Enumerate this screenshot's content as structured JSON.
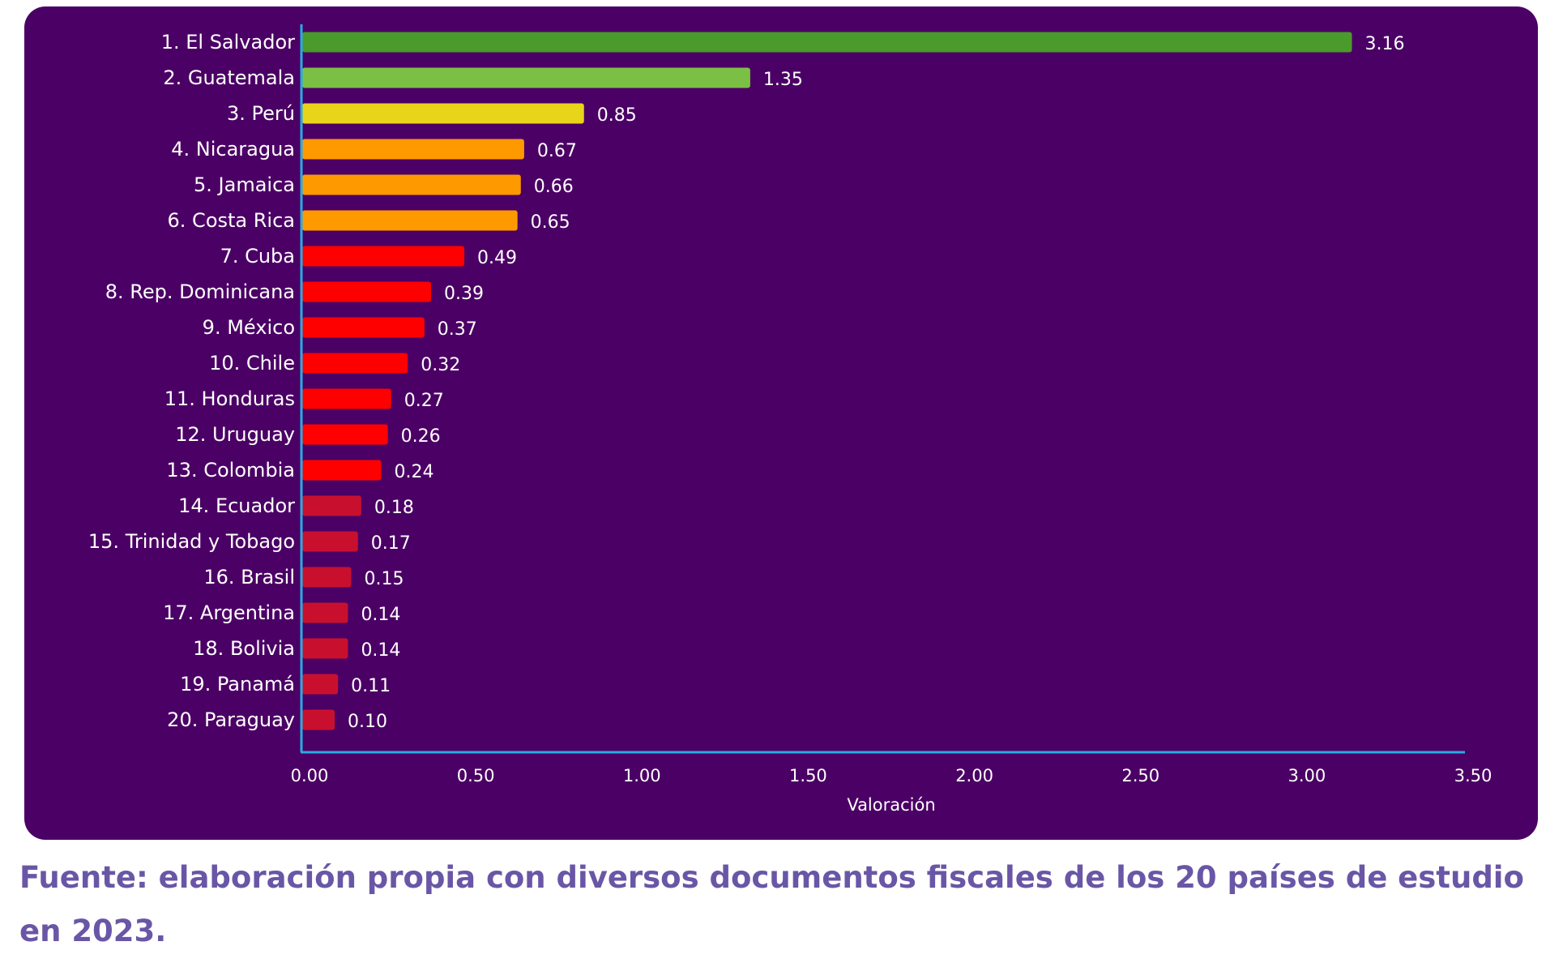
{
  "chart_data": {
    "type": "bar",
    "orientation": "horizontal",
    "categories": [
      "1. El Salvador",
      "2. Guatemala",
      "3. Perú",
      "4. Nicaragua",
      "5. Jamaica",
      "6. Costa Rica",
      "7. Cuba",
      "8. Rep. Dominicana",
      "9. México",
      "10. Chile",
      "11. Honduras",
      "12. Uruguay",
      "13. Colombia",
      "14. Ecuador",
      "15. Trinidad y Tobago",
      "16. Brasil",
      "17. Argentina",
      "18. Bolivia",
      "19. Panamá",
      "20. Paraguay"
    ],
    "values": [
      3.16,
      1.35,
      0.85,
      0.67,
      0.66,
      0.65,
      0.49,
      0.39,
      0.37,
      0.32,
      0.27,
      0.26,
      0.24,
      0.18,
      0.17,
      0.15,
      0.14,
      0.14,
      0.11,
      0.1
    ],
    "value_labels": [
      "3.16",
      "1.35",
      "0.85",
      "0.67",
      "0.66",
      "0.65",
      "0.49",
      "0.39",
      "0.37",
      "0.32",
      "0.27",
      "0.26",
      "0.24",
      "0.18",
      "0.17",
      "0.15",
      "0.14",
      "0.14",
      "0.11",
      "0.10"
    ],
    "bar_colors": [
      "#4a9a2c",
      "#7cbf45",
      "#e8d51a",
      "#ff9900",
      "#ff9900",
      "#ff9900",
      "#ff0000",
      "#ff0000",
      "#ff0000",
      "#ff0000",
      "#ff0000",
      "#ff0000",
      "#ff0000",
      "#c8102e",
      "#c8102e",
      "#c8102e",
      "#c8102e",
      "#c8102e",
      "#c8102e",
      "#c8102e"
    ],
    "xlim": [
      0,
      3.5
    ],
    "xticks": [
      "0.00",
      "0.50",
      "1.00",
      "1.50",
      "2.00",
      "2.50",
      "3.00",
      "3.50"
    ],
    "xlabel": "Valoración",
    "ylabel": "",
    "grid": false,
    "colors": {
      "background": "#4b0065",
      "axis": "#29abe2",
      "text": "#ffffff"
    }
  },
  "source_note": "Fuente: elaboración propia con diversos documentos fiscales de los 20 países de estudio en 2023.",
  "colors": {
    "source_text": "#6a56a6"
  }
}
